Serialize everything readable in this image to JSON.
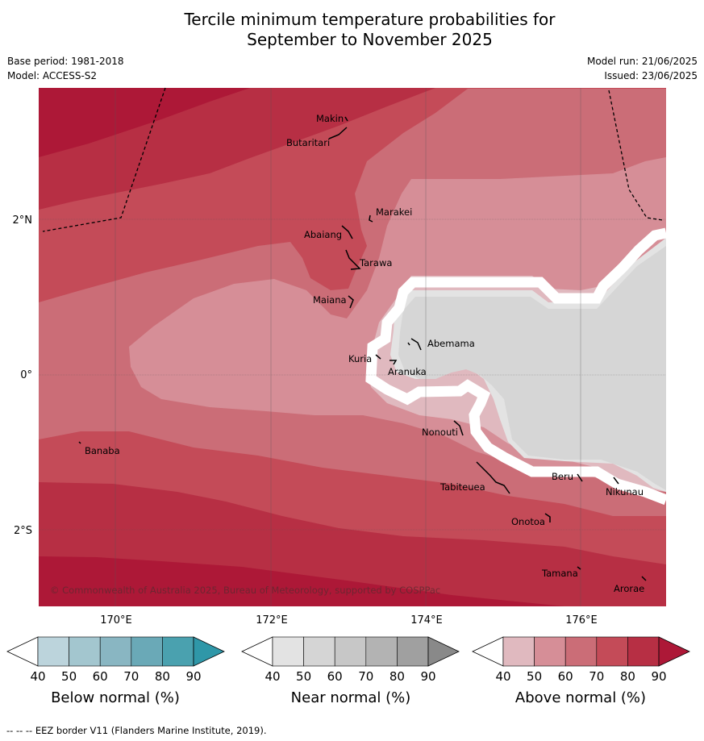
{
  "header": {
    "title_line1": "Tercile minimum temperature probabilities for",
    "title_line2": "September to November 2025",
    "base_period": "Base period: 1981-2018",
    "model": "Model: ACCESS-S2",
    "model_run": "Model run: 21/06/2025",
    "issued": "Issued: 23/06/2025"
  },
  "map": {
    "copyright": "© Commonwealth of Australia 2025, Bureau of Meteorology, supported by COSPPac",
    "lat_labels": [
      "2°N",
      "0°",
      "2°S"
    ],
    "lon_labels": [
      "170°E",
      "172°E",
      "174°E",
      "176°E"
    ],
    "places": [
      "Makin",
      "Butaritari",
      "Marakei",
      "Abaiang",
      "Tarawa",
      "Maiana",
      "Abemama",
      "Kuria",
      "Aranuka",
      "Nonouti",
      "Banaba",
      "Tabiteuea",
      "Beru",
      "Nikunau",
      "Onotoa",
      "Tamana",
      "Arorae"
    ]
  },
  "legend": {
    "ticks": [
      "40",
      "50",
      "60",
      "70",
      "80",
      "90"
    ],
    "below_label": "Below normal (%)",
    "near_label": "Near normal (%)",
    "above_label": "Above normal (%)",
    "below_colors": [
      "#bcd4dc",
      "#a3c6cf",
      "#89b6c2",
      "#6aa9b7",
      "#4aa1af",
      "#2f97a8"
    ],
    "near_colors": [
      "#e3e3e3",
      "#d5d5d5",
      "#c7c7c7",
      "#b3b3b3",
      "#a0a0a0",
      "#898989"
    ],
    "above_colors": [
      "#e0b9bf",
      "#d68e97",
      "#cb6d77",
      "#c44b58",
      "#b72f44",
      "#ad1837"
    ]
  },
  "footer": {
    "eez_note": "--  --  -- EEZ border V11 (Flanders Marine Institute, 2019)."
  }
}
